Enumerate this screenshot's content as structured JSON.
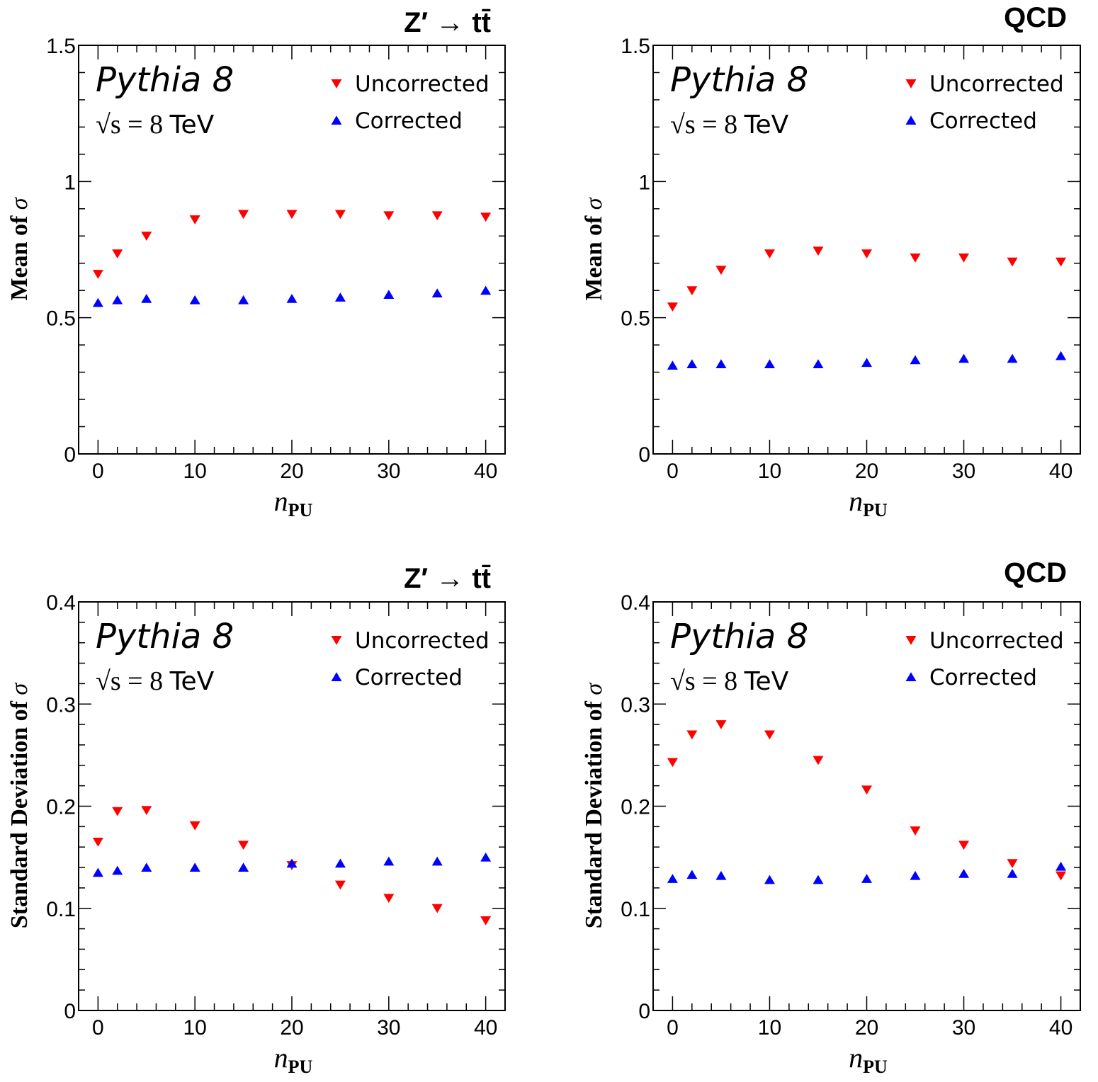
{
  "chart_data": [
    {
      "type": "scatter",
      "title": "Z′ → tt̄",
      "generator": "Pythia 8",
      "energy": {
        "math": "√s = 8",
        "unit": "TeV"
      },
      "xlabel": "nPU",
      "ylabel": "Mean of σ",
      "xlim": [
        -2,
        42
      ],
      "ylim": [
        0,
        1.5
      ],
      "xticks": [
        "0",
        "10",
        "20",
        "30",
        "40"
      ],
      "yticks": [
        "0",
        "0.5",
        "1",
        "1.5"
      ],
      "legend_position": "top-right",
      "series": [
        {
          "name": "Uncorrected",
          "marker": "triangle-down",
          "color": "#ff0000",
          "x": [
            0,
            2,
            5,
            10,
            15,
            20,
            25,
            30,
            35,
            40
          ],
          "y": [
            0.66,
            0.735,
            0.8,
            0.86,
            0.88,
            0.88,
            0.88,
            0.875,
            0.875,
            0.87
          ]
        },
        {
          "name": "Corrected",
          "marker": "triangle-up",
          "color": "#0000ff",
          "x": [
            0,
            2,
            5,
            10,
            15,
            20,
            25,
            30,
            35,
            40
          ],
          "y": [
            0.555,
            0.565,
            0.57,
            0.565,
            0.565,
            0.57,
            0.575,
            0.585,
            0.59,
            0.6
          ]
        }
      ]
    },
    {
      "type": "scatter",
      "title": "QCD",
      "generator": "Pythia 8",
      "energy": {
        "math": "√s = 8",
        "unit": "TeV"
      },
      "xlabel": "nPU",
      "ylabel": "Mean of σ",
      "xlim": [
        -2,
        42
      ],
      "ylim": [
        0,
        1.5
      ],
      "xticks": [
        "0",
        "10",
        "20",
        "30",
        "40"
      ],
      "yticks": [
        "0",
        "0.5",
        "1",
        "1.5"
      ],
      "legend_position": "top-right",
      "series": [
        {
          "name": "Uncorrected",
          "marker": "triangle-down",
          "color": "#ff0000",
          "x": [
            0,
            2,
            5,
            10,
            15,
            20,
            25,
            30,
            35,
            40
          ],
          "y": [
            0.54,
            0.6,
            0.675,
            0.735,
            0.745,
            0.735,
            0.72,
            0.72,
            0.705,
            0.705
          ]
        },
        {
          "name": "Corrected",
          "marker": "triangle-up",
          "color": "#0000ff",
          "x": [
            0,
            2,
            5,
            10,
            15,
            20,
            25,
            30,
            35,
            40
          ],
          "y": [
            0.325,
            0.33,
            0.33,
            0.33,
            0.33,
            0.335,
            0.345,
            0.35,
            0.35,
            0.36
          ]
        }
      ]
    },
    {
      "type": "scatter",
      "title": "Z′ → tt̄",
      "generator": "Pythia 8",
      "energy": {
        "math": "√s = 8",
        "unit": "TeV"
      },
      "xlabel": "nPU",
      "ylabel": "Standard Deviation of σ",
      "xlim": [
        -2,
        42
      ],
      "ylim": [
        0,
        0.4
      ],
      "xticks": [
        "0",
        "10",
        "20",
        "30",
        "40"
      ],
      "yticks": [
        "0",
        "0.1",
        "0.2",
        "0.3",
        "0.4"
      ],
      "legend_position": "top-right",
      "series": [
        {
          "name": "Uncorrected",
          "marker": "triangle-down",
          "color": "#ff0000",
          "x": [
            0,
            2,
            5,
            10,
            15,
            20,
            25,
            30,
            35,
            40
          ],
          "y": [
            0.165,
            0.195,
            0.196,
            0.181,
            0.162,
            0.142,
            0.123,
            0.11,
            0.1,
            0.088
          ]
        },
        {
          "name": "Corrected",
          "marker": "triangle-up",
          "color": "#0000ff",
          "x": [
            0,
            2,
            5,
            10,
            15,
            20,
            25,
            30,
            35,
            40
          ],
          "y": [
            0.135,
            0.137,
            0.14,
            0.14,
            0.14,
            0.144,
            0.144,
            0.146,
            0.146,
            0.15
          ]
        }
      ]
    },
    {
      "type": "scatter",
      "title": "QCD",
      "generator": "Pythia 8",
      "energy": {
        "math": "√s = 8",
        "unit": "TeV"
      },
      "xlabel": "nPU",
      "ylabel": "Standard Deviation of σ",
      "xlim": [
        -2,
        42
      ],
      "ylim": [
        0,
        0.4
      ],
      "xticks": [
        "0",
        "10",
        "20",
        "30",
        "40"
      ],
      "yticks": [
        "0",
        "0.1",
        "0.2",
        "0.3",
        "0.4"
      ],
      "legend_position": "top-right",
      "series": [
        {
          "name": "Uncorrected",
          "marker": "triangle-down",
          "color": "#ff0000",
          "x": [
            0,
            2,
            5,
            10,
            15,
            20,
            25,
            30,
            35,
            40
          ],
          "y": [
            0.243,
            0.27,
            0.28,
            0.27,
            0.245,
            0.216,
            0.176,
            0.162,
            0.144,
            0.132
          ]
        },
        {
          "name": "Corrected",
          "marker": "triangle-up",
          "color": "#0000ff",
          "x": [
            0,
            2,
            5,
            10,
            15,
            20,
            25,
            30,
            35,
            40
          ],
          "y": [
            0.129,
            0.133,
            0.132,
            0.128,
            0.128,
            0.129,
            0.132,
            0.134,
            0.134,
            0.141
          ]
        }
      ]
    }
  ]
}
